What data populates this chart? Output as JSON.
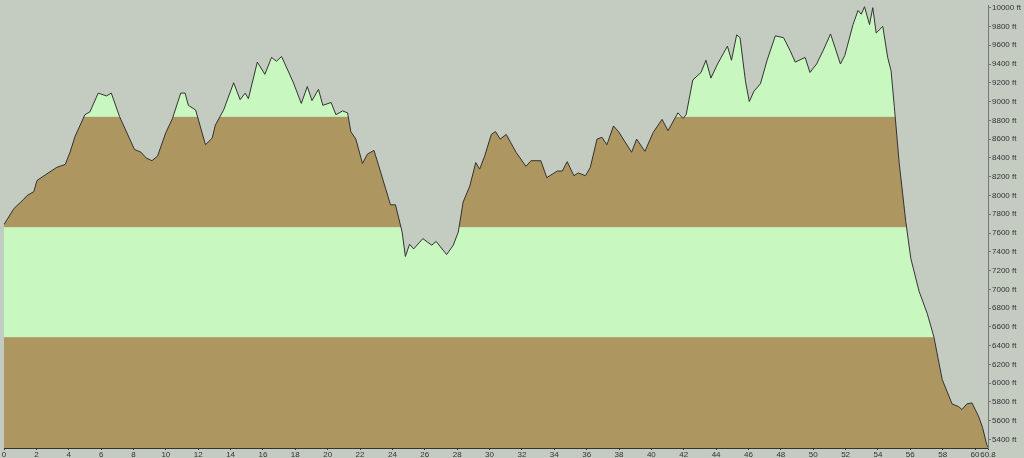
{
  "chart_data": {
    "type": "area",
    "x": [
      0,
      0.61,
      1.22,
      1.43,
      1.84,
      2.04,
      2.65,
      3.27,
      3.78,
      4.08,
      4.39,
      5.0,
      5.31,
      5.82,
      6.33,
      6.63,
      7.14,
      8.06,
      8.47,
      8.78,
      9.14,
      9.49,
      10.0,
      10.41,
      10.92,
      11.19,
      11.39,
      11.84,
      12.45,
      12.86,
      13.06,
      13.57,
      14.19,
      14.59,
      14.9,
      15.1,
      15.65,
      16.12,
      16.53,
      16.84,
      17.15,
      17.86,
      18.37,
      18.74,
      19.03,
      19.43,
      19.7,
      20.21,
      20.51,
      20.92,
      21.23,
      21.43,
      21.74,
      22.15,
      22.45,
      22.86,
      23.27,
      23.88,
      24.19,
      24.6,
      24.8,
      25.06,
      25.31,
      25.88,
      26.43,
      26.7,
      27.35,
      27.76,
      28.07,
      28.37,
      28.78,
      29.15,
      29.39,
      29.7,
      30.11,
      30.37,
      30.66,
      31.03,
      31.64,
      32.25,
      32.56,
      33.17,
      33.54,
      34.19,
      34.5,
      34.8,
      35.21,
      35.48,
      35.93,
      36.23,
      36.64,
      36.95,
      37.25,
      37.66,
      37.97,
      38.78,
      39.09,
      39.6,
      40.11,
      40.66,
      41.03,
      41.64,
      41.95,
      42.15,
      42.56,
      43.07,
      43.37,
      43.68,
      44.09,
      44.7,
      44.95,
      45.27,
      45.48,
      45.82,
      46.05,
      46.34,
      46.74,
      47.15,
      47.66,
      48.17,
      48.58,
      48.89,
      49.5,
      49.8,
      50.21,
      50.66,
      51.07,
      51.34,
      51.68,
      51.95,
      52.46,
      52.77,
      52.97,
      53.17,
      53.48,
      53.68,
      53.89,
      54.3,
      54.6,
      54.81,
      55.01,
      55.31,
      55.72,
      56.03,
      56.54,
      57.05,
      57.46,
      57.97,
      58.58,
      58.99,
      59.19,
      59.5,
      59.81,
      60.21,
      60.46,
      60.73,
      60.8
    ],
    "series": [
      {
        "color": "#333333",
        "values": [
          7690,
          7860,
          7960,
          8000,
          8040,
          8160,
          8230,
          8300,
          8330,
          8460,
          8630,
          8860,
          8890,
          9090,
          9060,
          9090,
          8840,
          8490,
          8460,
          8400,
          8370,
          8420,
          8670,
          8820,
          9090,
          9090,
          8960,
          8910,
          8540,
          8610,
          8750,
          8910,
          9200,
          9020,
          9090,
          9030,
          9420,
          9290,
          9470,
          9430,
          9480,
          9210,
          8980,
          9160,
          9010,
          9130,
          8960,
          8990,
          8860,
          8900,
          8880,
          8680,
          8600,
          8340,
          8440,
          8480,
          8250,
          7900,
          7900,
          7610,
          7350,
          7480,
          7430,
          7540,
          7470,
          7510,
          7370,
          7470,
          7610,
          7930,
          8100,
          8350,
          8280,
          8420,
          8650,
          8680,
          8600,
          8650,
          8460,
          8310,
          8370,
          8370,
          8190,
          8260,
          8260,
          8360,
          8210,
          8240,
          8210,
          8300,
          8600,
          8620,
          8540,
          8740,
          8680,
          8460,
          8600,
          8470,
          8670,
          8810,
          8690,
          8880,
          8820,
          8860,
          9230,
          9310,
          9440,
          9250,
          9400,
          9590,
          9440,
          9710,
          9680,
          9210,
          9000,
          9110,
          9190,
          9440,
          9700,
          9680,
          9540,
          9420,
          9470,
          9310,
          9400,
          9560,
          9720,
          9580,
          9400,
          9490,
          9820,
          9970,
          9930,
          10010,
          9820,
          10000,
          9730,
          9800,
          9470,
          9330,
          8950,
          8350,
          7720,
          7330,
          6980,
          6740,
          6490,
          6040,
          5780,
          5750,
          5720,
          5780,
          5790,
          5650,
          5530,
          5340,
          5320
        ]
      }
    ],
    "xlim": [
      0,
      60.8
    ],
    "xticks": [
      0,
      2,
      4,
      6,
      8,
      10,
      12,
      14,
      16,
      18,
      20,
      22,
      24,
      26,
      28,
      30,
      32,
      34,
      36,
      38,
      40,
      42,
      44,
      46,
      48,
      50,
      52,
      54,
      56,
      58,
      60,
      60.8
    ],
    "ylim": [
      5310,
      10020
    ],
    "yticks": [
      {
        "value": 5400,
        "label": "5400 ft"
      },
      {
        "value": 5600,
        "label": "5600 ft"
      },
      {
        "value": 5800,
        "label": "5800 ft"
      },
      {
        "value": 6000,
        "label": "6000 ft"
      },
      {
        "value": 6200,
        "label": "6200 ft"
      },
      {
        "value": 6400,
        "label": "6400 ft"
      },
      {
        "value": 6600,
        "label": "6600 ft"
      },
      {
        "value": 6800,
        "label": "6800 ft"
      },
      {
        "value": 7000,
        "label": "7000 ft"
      },
      {
        "value": 7200,
        "label": "7200 ft"
      },
      {
        "value": 7400,
        "label": "7400 ft"
      },
      {
        "value": 7600,
        "label": "7600 ft"
      },
      {
        "value": 7800,
        "label": "7800 ft"
      },
      {
        "value": 8000,
        "label": "8000 ft"
      },
      {
        "value": 8200,
        "label": "8200 ft"
      },
      {
        "value": 8400,
        "label": "8400 ft"
      },
      {
        "value": 8600,
        "label": "8600 ft"
      },
      {
        "value": 8800,
        "label": "8800 ft"
      },
      {
        "value": 9000,
        "label": "9000 ft"
      },
      {
        "value": 9200,
        "label": "9200 ft"
      },
      {
        "value": 9400,
        "label": "9400 ft"
      },
      {
        "value": 9600,
        "label": "9600 ft"
      },
      {
        "value": 9800,
        "label": "9800 ft"
      },
      {
        "value": 10000,
        "label": "10000 ft"
      }
    ],
    "bands": [
      {
        "axis": "y",
        "from": 5310,
        "to": 6490,
        "color": "#ae9660"
      },
      {
        "axis": "y",
        "from": 6490,
        "to": 7660,
        "color": "#c8f8c0"
      },
      {
        "axis": "y",
        "from": 7660,
        "to": 8840,
        "color": "#ae9660"
      },
      {
        "axis": "y",
        "from": 8840,
        "to": 10020,
        "color": "#c8f8c0"
      }
    ]
  }
}
